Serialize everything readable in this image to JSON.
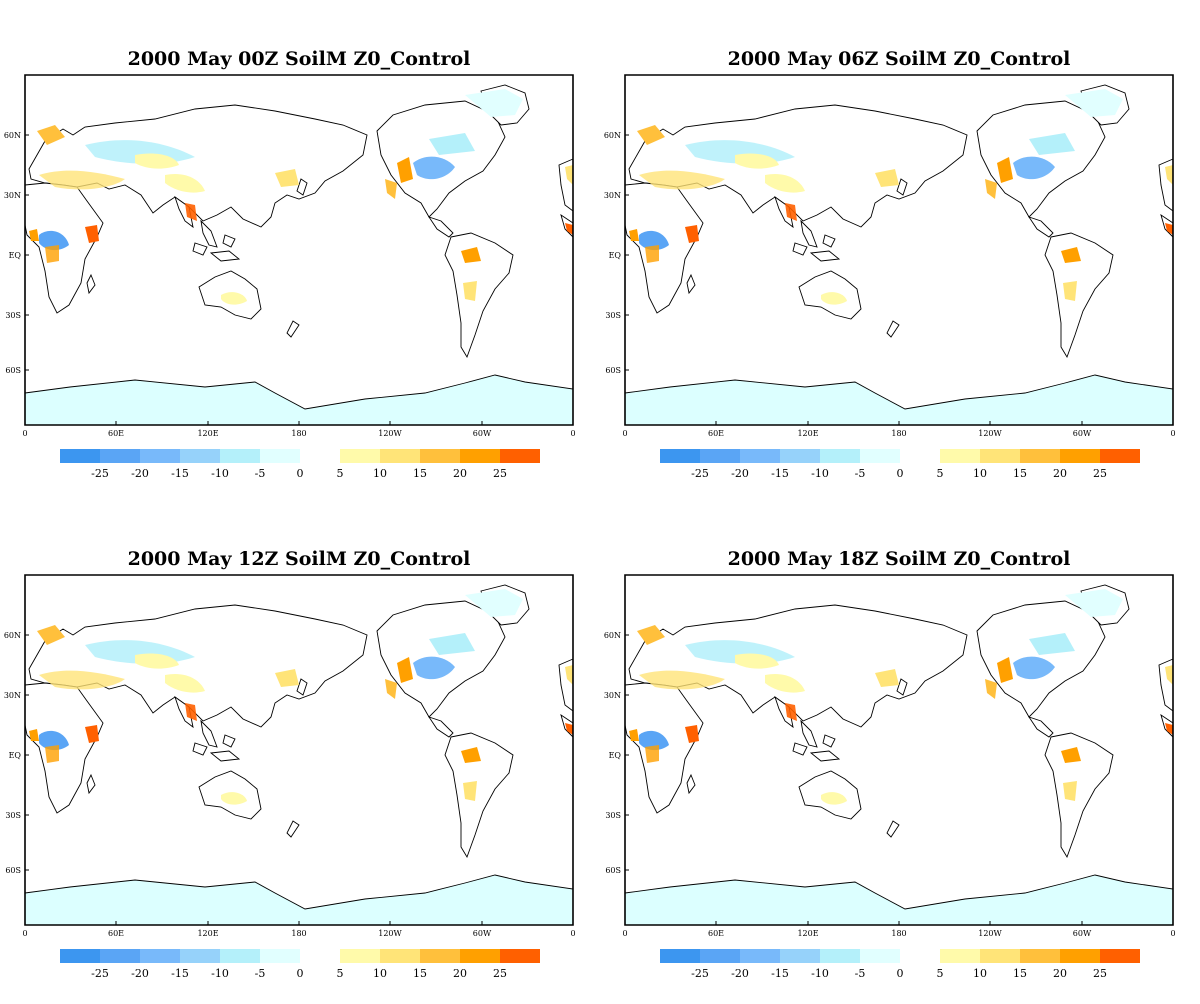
{
  "colors": {
    "negative": [
      "#3c96f0",
      "#5aa5f5",
      "#78b9fa",
      "#96d2fa",
      "#b4f0fa",
      "#e1ffff"
    ],
    "positive": [
      "#fffaaa",
      "#ffe478",
      "#ffc03c",
      "#ffa000",
      "#ff6000"
    ]
  },
  "legend": {
    "negative_ticks": [
      "-25",
      "-20",
      "-15",
      "-10",
      "-5",
      "0"
    ],
    "positive_ticks": [
      "5",
      "10",
      "15",
      "20",
      "25"
    ]
  },
  "axes": {
    "lat_ticks": [
      "60N",
      "30N",
      "EQ",
      "30S",
      "60S"
    ],
    "lon_ticks": [
      "0",
      "60E",
      "120E",
      "180",
      "120W",
      "60W",
      "0"
    ]
  },
  "panels": [
    {
      "title": "2000 May  00Z SoilM Z0_Control"
    },
    {
      "title": "2000  May 06Z SoilM Z0_Control"
    },
    {
      "title": "2000  May 12Z SoilM Z0_Control"
    },
    {
      "title": "2000  May 18Z SoilM Z0_Control"
    }
  ]
}
